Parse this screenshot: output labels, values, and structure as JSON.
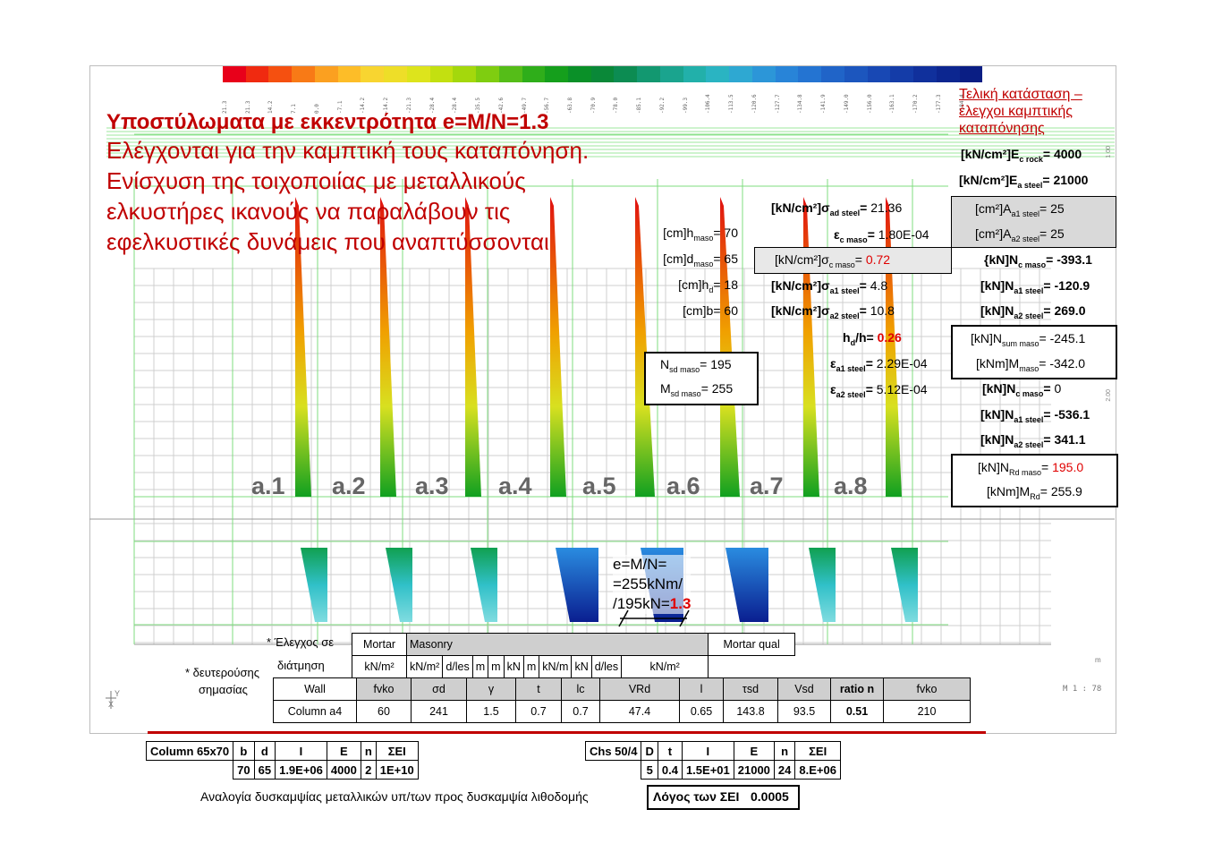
{
  "title": {
    "heading": "Υποστύλωματα με εκκεντρότητα e=M/N=1.3",
    "lines": [
      "Ελέγχονται για την καμπτική τους καταπόνηση.",
      "Ενίσχυση της τοιχοποιίας με μεταλλικούς",
      "ελκυστήρες ικανούς να παραλάβουν τις",
      "εφελκυστικές δυνάμεις που αναπτύσσονται"
    ]
  },
  "side_title": [
    "Τελική κατάσταση –",
    "έλεγχοι καμπτικής",
    "καταπόνησης"
  ],
  "colorbar": {
    "colors": [
      "#e8001a",
      "#f02a10",
      "#f55010",
      "#f87a16",
      "#fba020",
      "#fdbd28",
      "#f8d530",
      "#eede28",
      "#dde41c",
      "#c3e010",
      "#a4d80c",
      "#7fcd10",
      "#55bd18",
      "#2fae1a",
      "#159f1c",
      "#0a9028",
      "#0a8838",
      "#0c8c52",
      "#129870",
      "#1aa48e",
      "#22b0aa",
      "#2ab4c2",
      "#2ea8d2",
      "#2c96d8",
      "#2884d8",
      "#2474d2",
      "#2064c8",
      "#1c56be",
      "#1848b4",
      "#143ca8",
      "#10309c",
      "#0c2690",
      "#0a1e84"
    ],
    "ticks": [
      "21.3",
      "21.3",
      "14.2",
      "7.1",
      "0.0",
      "-7.1",
      "-14.2",
      "-14.2",
      "-21.3",
      "-28.4",
      "-28.4",
      "-35.5",
      "-42.6",
      "-49.7",
      "-56.7",
      "-63.8",
      "-70.9",
      "-78.0",
      "-85.1",
      "-92.2",
      "-99.3",
      "-106.4",
      "-113.5",
      "-120.6",
      "-127.7",
      "-134.8",
      "-141.9",
      "-149.0",
      "-156.0",
      "-163.1",
      "-170.2",
      "-177.3",
      "-184.4"
    ]
  },
  "axis_small_labels": {
    "right_a": "1 00",
    "right_b": "2.00",
    "scale": "M 1 : 78",
    "m_mark": "m",
    "y_axis": "Y",
    "x_axis": "X"
  },
  "geometry_params": [
    {
      "label_pre": "[cm]h",
      "sub": "maso",
      "value": "70"
    },
    {
      "label_pre": "[cm]d",
      "sub": "maso",
      "value": "65"
    },
    {
      "label_pre": "[cm]h",
      "sub": "d",
      "value": "18"
    },
    {
      "label_pre": "[cm]b",
      "sub": "",
      "value": "60"
    }
  ],
  "design_loads": [
    {
      "label_pre": "N",
      "sub": "sd maso",
      "value": "195"
    },
    {
      "label_pre": "M",
      "sub": "sd maso",
      "value": "255"
    }
  ],
  "steel_stress": {
    "label": "[kN/cm²]σ",
    "sub": "ad steel",
    "value": "21.36"
  },
  "eps_c": {
    "label": "ε",
    "sub": "c maso",
    "value": "1.80E-04"
  },
  "sigma_c": {
    "label": "[kN/cm²]σ",
    "sub": "c maso",
    "value": "0.72"
  },
  "sigma_a": [
    {
      "label": "[kN/cm²]σ",
      "sub": "a1 steel",
      "value": "4.8"
    },
    {
      "label": "[kN/cm²]σ",
      "sub": "a2 steel",
      "value": "10.8"
    }
  ],
  "hd_h": {
    "label": "h",
    "sub": "d",
    "label_post": "/h",
    "value": "0.26"
  },
  "eps_a": [
    {
      "label": "ε",
      "sub": "a1 steel",
      "value": "2.29E-04"
    },
    {
      "label": "ε",
      "sub": "a2 steel",
      "value": "5.12E-04"
    }
  ],
  "moduli": [
    {
      "label": "[kN/cm²]E",
      "sub": "c rock",
      "value": "4000"
    },
    {
      "label": "[kN/cm²]E",
      "sub": "a steel",
      "value": "21000"
    }
  ],
  "areas": [
    {
      "label": "[cm²]A",
      "sub": "a1 steel",
      "value": "25"
    },
    {
      "label": "[cm²]A",
      "sub": "a2 steel",
      "value": "25"
    }
  ],
  "forces_1": [
    {
      "label": "{kN]N",
      "sub": "c maso",
      "value": "-393.1"
    },
    {
      "label": "[kN]N",
      "sub": "a1 steel",
      "value": "-120.9"
    },
    {
      "label": "[kN]N",
      "sub": "a2 steel",
      "value": "269.0"
    }
  ],
  "sums": [
    {
      "label": "[kN]N",
      "sub": "sum maso",
      "value": "-245.1"
    },
    {
      "label": "[kNm]M",
      "sub": "maso",
      "value": "-342.0"
    }
  ],
  "forces_2": [
    {
      "label": "[kN]N",
      "sub": "c maso",
      "value": "0"
    },
    {
      "label": "[kN]N",
      "sub": "a1 steel",
      "value": "-536.1"
    },
    {
      "label": "[kN]N",
      "sub": "a2 steel",
      "value": "341.1"
    }
  ],
  "resist": [
    {
      "label": "[kN]N",
      "sub": "Rd maso",
      "value": "195.0"
    },
    {
      "label": "[kNm]M",
      "sub": "Rd",
      "value": "255.9"
    }
  ],
  "column_labels": [
    "a.1",
    "a.2",
    "a.3",
    "a.4",
    "a.5",
    "a.6",
    "a.7",
    "a.8"
  ],
  "eccentricity": {
    "l1": "e=M/N=",
    "l2": "=255kNm/",
    "l3_pre": "/195kN=",
    "l3_val": "1.3"
  },
  "check_table": {
    "side1": "* Έλεγχος σε",
    "side2": "διάτμηση",
    "side3": "* δευτερούσης",
    "side4": "σημασίας",
    "group_mortar": "Mortar",
    "group_masonry": "Masonry",
    "group_mortar_qual": "Mortar qual",
    "units": [
      "kN/m²",
      "kN/m²",
      "d/les",
      "m",
      "m",
      "kN",
      "m",
      "kN/m",
      "kN",
      "d/les",
      "kN/m²"
    ],
    "symbols": [
      "Wall",
      "fvko",
      "σd",
      "γ",
      "t",
      "lc",
      "VRd",
      "l",
      "τsd",
      "Vsd",
      "ratio n",
      "fvko"
    ],
    "row": [
      "Column a4",
      "60",
      "241",
      "1.5",
      "0.7",
      "0.7",
      "47.4",
      "0.65",
      "143.8",
      "93.5",
      "0.51",
      "210"
    ]
  },
  "column_table": {
    "headers": [
      "Column 65x70",
      "b",
      "d",
      "I",
      "E",
      "n",
      "ΣΕΙ"
    ],
    "values": [
      "70",
      "65",
      "1.9E+06",
      "4000",
      "2",
      "1E+10"
    ]
  },
  "chs_table": {
    "headers": [
      "Chs 50/4",
      "D",
      "t",
      "I",
      "E",
      "n",
      "ΣΕΙ"
    ],
    "values": [
      "5",
      "0.4",
      "1.5E+01",
      "21000",
      "24",
      "8.E+06"
    ]
  },
  "footer": {
    "caption": "Αναλογία δυσκαμψίας μεταλλικών υπ/των προς δυσκαμψία λιθοδομής",
    "ratio_label": "Λόγος των ΣΕΙ",
    "ratio_value": "0.0005"
  }
}
